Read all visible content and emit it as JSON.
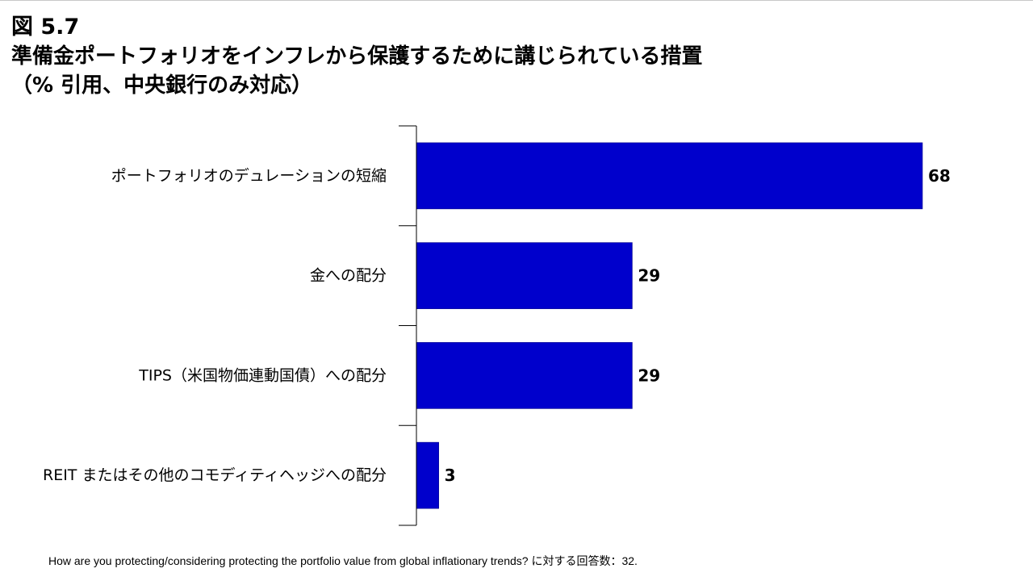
{
  "figure_number": "図 5.7",
  "title_line1": "準備金ポートフォリオをインフレから保護するために講じられている措置",
  "title_line2": "（% 引用、中央銀行のみ対応）",
  "footnote": "How are you protecting/considering protecting the portfolio value from global inflationary trends? に対する回答数：32.",
  "colors": {
    "bar": "#0000CC",
    "axis": "#000000"
  },
  "chart_data": {
    "type": "bar",
    "orientation": "horizontal",
    "title": "準備金ポートフォリオをインフレから保護するために講じられている措置（% 引用、中央銀行のみ対応）",
    "xlabel": "",
    "ylabel": "",
    "xlim": [
      0,
      68
    ],
    "grid": false,
    "legend": "none",
    "categories": [
      "ポートフォリオのデュレーションの短縮",
      "金への配分",
      "TIPS（米国物価連動国債）への配分",
      "REIT またはその他のコモディティヘッジへの配分"
    ],
    "values": [
      68,
      29,
      29,
      3
    ],
    "value_labels": [
      "68",
      "29",
      "29",
      "3"
    ]
  }
}
